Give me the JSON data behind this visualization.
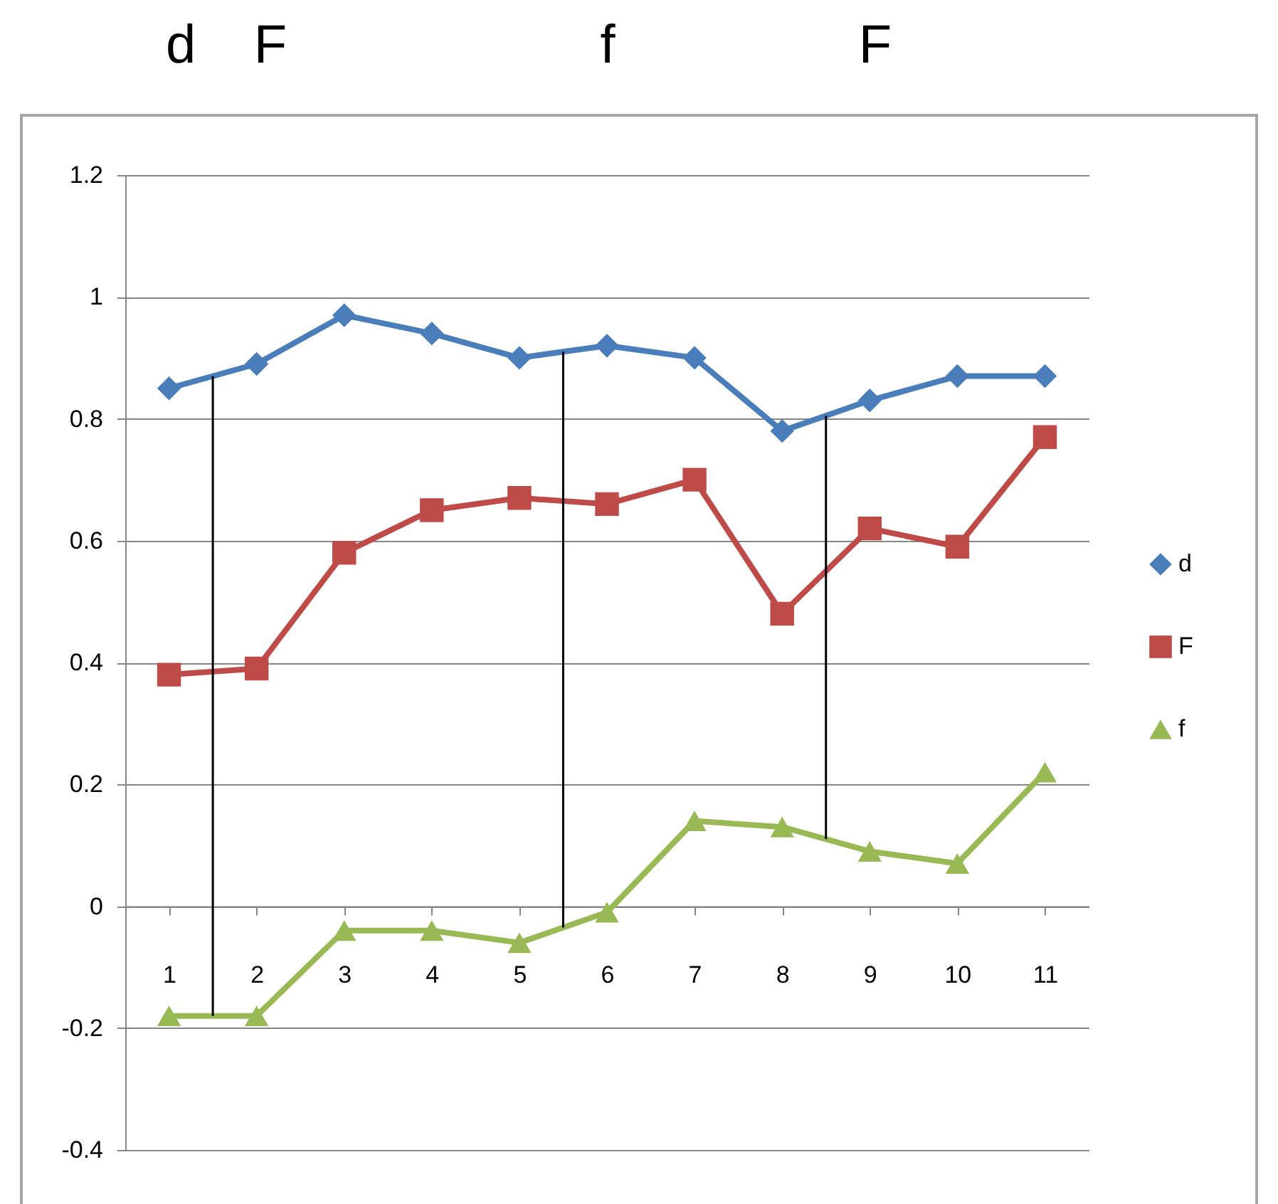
{
  "chart_data": {
    "type": "line",
    "x": [
      1,
      2,
      3,
      4,
      5,
      6,
      7,
      8,
      9,
      10,
      11
    ],
    "xlim": [
      0.5,
      11.5
    ],
    "xticks": [
      1,
      2,
      3,
      4,
      5,
      6,
      7,
      8,
      9,
      10,
      11
    ],
    "ylim": [
      -0.4,
      1.2
    ],
    "yticks": [
      -0.4,
      -0.2,
      0,
      0.2,
      0.4,
      0.6,
      0.8,
      1,
      1.2
    ],
    "grid": "y",
    "legend": "right",
    "line_style": "solid",
    "series": [
      {
        "name": "d",
        "color": "#4a7ebb",
        "marker": "diamond",
        "values": [
          0.85,
          0.89,
          0.97,
          0.94,
          0.9,
          0.92,
          0.9,
          0.78,
          0.83,
          0.87,
          0.87
        ]
      },
      {
        "name": "F",
        "color": "#be4b48",
        "marker": "square",
        "values": [
          0.38,
          0.39,
          0.58,
          0.65,
          0.67,
          0.66,
          0.7,
          0.48,
          0.62,
          0.59,
          0.77
        ]
      },
      {
        "name": "f",
        "color": "#98b954",
        "marker": "triangle",
        "values": [
          -0.18,
          -0.18,
          -0.04,
          -0.04,
          -0.06,
          -0.01,
          0.14,
          0.13,
          0.09,
          0.07,
          0.22
        ]
      }
    ],
    "ref_lines": [
      {
        "axis": "x",
        "value": 1.5,
        "color": "#000000"
      },
      {
        "axis": "x",
        "value": 5.5,
        "color": "#000000"
      },
      {
        "axis": "x",
        "value": 8.5,
        "color": "#000000"
      }
    ],
    "annotations": [
      "d",
      "F",
      "f",
      "F"
    ]
  }
}
